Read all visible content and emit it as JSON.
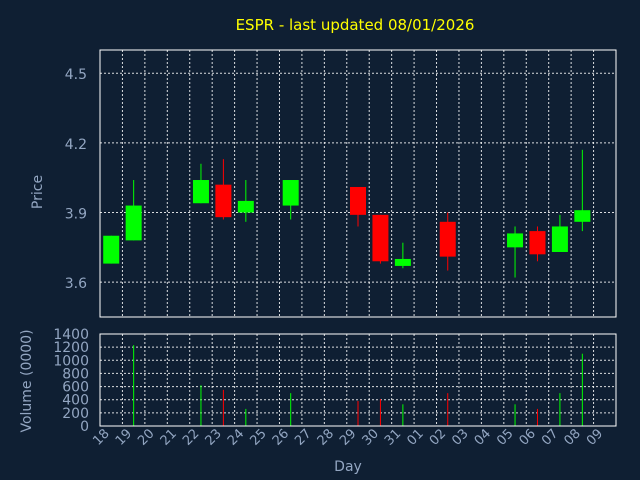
{
  "colors": {
    "background": "#0f1f33",
    "up": "#00ff00",
    "down": "#ff0000",
    "title": "#ffff00",
    "axis_text": "#93a6c2",
    "grid": "#ffffff"
  },
  "chart_data": {
    "type": "candlestick",
    "title": "ESPR - last updated 08/01/2026",
    "xlabel": "Day",
    "ylabel": "Price",
    "volume_label": "Volume (0000)",
    "ylim": [
      3.45,
      4.6
    ],
    "yticks": [
      "4.5",
      "4.2",
      "3.9",
      "3.6"
    ],
    "volume_ylim": [
      0,
      1400
    ],
    "volume_yticks": [
      "1400",
      "1200",
      "1000",
      "800",
      "600",
      "400",
      "200",
      "0"
    ],
    "x_labels": [
      "18",
      "19",
      "20",
      "21",
      "22",
      "23",
      "24",
      "25",
      "26",
      "27",
      "28",
      "29",
      "30",
      "31",
      "01",
      "02",
      "03",
      "04",
      "05",
      "06",
      "07",
      "08",
      "09"
    ],
    "grid": true,
    "candles": [
      {
        "day": "18",
        "open": 3.68,
        "high": 3.8,
        "low": 3.68,
        "close": 3.8,
        "volume": 0
      },
      {
        "day": "19",
        "open": 3.78,
        "high": 4.04,
        "low": 3.78,
        "close": 3.93,
        "volume": 1230
      },
      {
        "day": "22",
        "open": 3.94,
        "high": 4.11,
        "low": 3.94,
        "close": 4.04,
        "volume": 620
      },
      {
        "day": "23",
        "open": 4.02,
        "high": 4.13,
        "low": 3.87,
        "close": 3.88,
        "volume": 550
      },
      {
        "day": "24",
        "open": 3.9,
        "high": 4.04,
        "low": 3.86,
        "close": 3.95,
        "volume": 260
      },
      {
        "day": "26",
        "open": 3.93,
        "high": 4.04,
        "low": 3.87,
        "close": 4.04,
        "volume": 500
      },
      {
        "day": "29",
        "open": 4.01,
        "high": 4.01,
        "low": 3.84,
        "close": 3.89,
        "volume": 380
      },
      {
        "day": "30",
        "open": 3.89,
        "high": 3.89,
        "low": 3.68,
        "close": 3.69,
        "volume": 410
      },
      {
        "day": "31",
        "open": 3.67,
        "high": 3.77,
        "low": 3.66,
        "close": 3.7,
        "volume": 330
      },
      {
        "day": "02",
        "open": 3.86,
        "high": 3.9,
        "low": 3.65,
        "close": 3.71,
        "volume": 500
      },
      {
        "day": "05",
        "open": 3.75,
        "high": 3.84,
        "low": 3.62,
        "close": 3.81,
        "volume": 330
      },
      {
        "day": "06",
        "open": 3.82,
        "high": 3.84,
        "low": 3.69,
        "close": 3.72,
        "volume": 260
      },
      {
        "day": "07",
        "open": 3.73,
        "high": 3.89,
        "low": 3.73,
        "close": 3.84,
        "volume": 500
      },
      {
        "day": "08",
        "open": 3.86,
        "high": 4.17,
        "low": 3.82,
        "close": 3.91,
        "volume": 1100
      }
    ]
  }
}
